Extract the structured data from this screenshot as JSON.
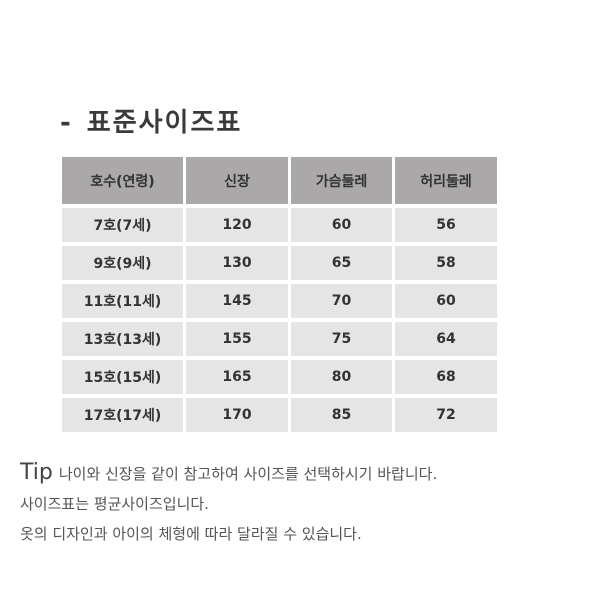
{
  "title": {
    "dash": "-",
    "text": "표준사이즈표"
  },
  "table": {
    "headers": [
      "호수(연령)",
      "신장",
      "가슴둘레",
      "허리둘레"
    ],
    "rows": [
      [
        "7호(7세)",
        "120",
        "60",
        "56"
      ],
      [
        "9호(9세)",
        "130",
        "65",
        "58"
      ],
      [
        "11호(11세)",
        "145",
        "70",
        "60"
      ],
      [
        "13호(13세)",
        "155",
        "75",
        "64"
      ],
      [
        "15호(15세)",
        "165",
        "80",
        "68"
      ],
      [
        "17호(17세)",
        "170",
        "85",
        "72"
      ]
    ]
  },
  "notes": {
    "tip_label": "Tip",
    "lines": [
      "나이와 신장을 같이 참고하여 사이즈를 선택하시기 바랍니다.",
      "사이즈표는 평균사이즈입니다.",
      "옷의 디자인과 아이의 체형에 따라 달라질 수 있습니다."
    ]
  }
}
